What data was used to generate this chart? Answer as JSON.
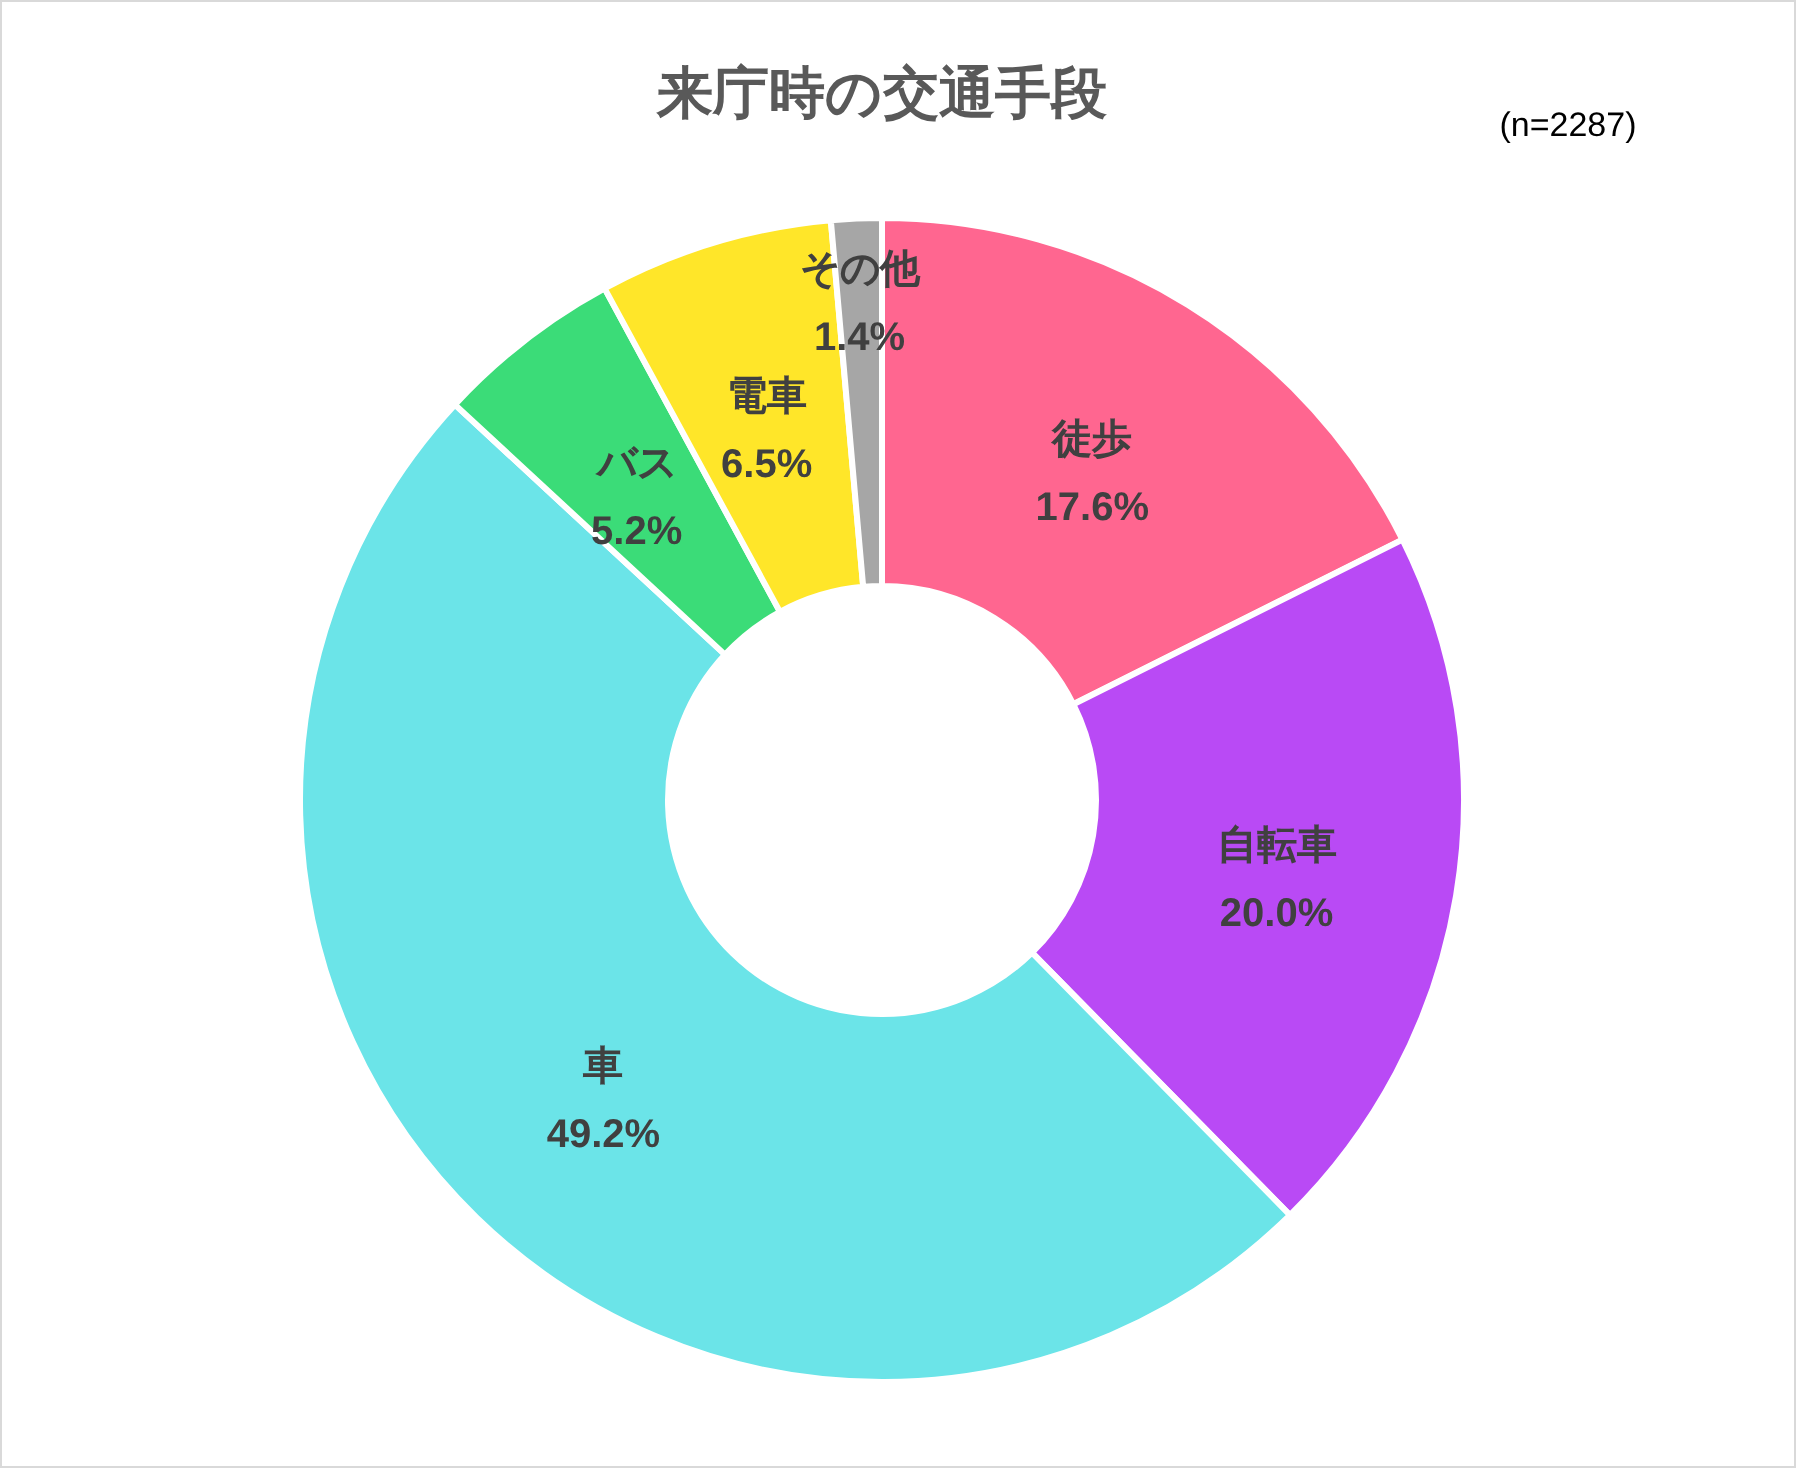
{
  "chart_data": {
    "type": "donut",
    "title": "来庁時の交通手段",
    "annotations": [
      "(n=2287)"
    ],
    "categories": [
      "徒歩",
      "自転車",
      "車",
      "バス",
      "電車",
      "その他"
    ],
    "values": [
      17.6,
      20.0,
      49.2,
      5.2,
      6.5,
      1.4
    ],
    "colors": [
      "#ff6690",
      "#b94af5",
      "#6be4e8",
      "#3bdc78",
      "#ffe629",
      "#a6a6a6"
    ],
    "value_labels": [
      "17.6%",
      "20.0%",
      "49.2%",
      "5.2%",
      "6.5%",
      "1.4%"
    ]
  }
}
